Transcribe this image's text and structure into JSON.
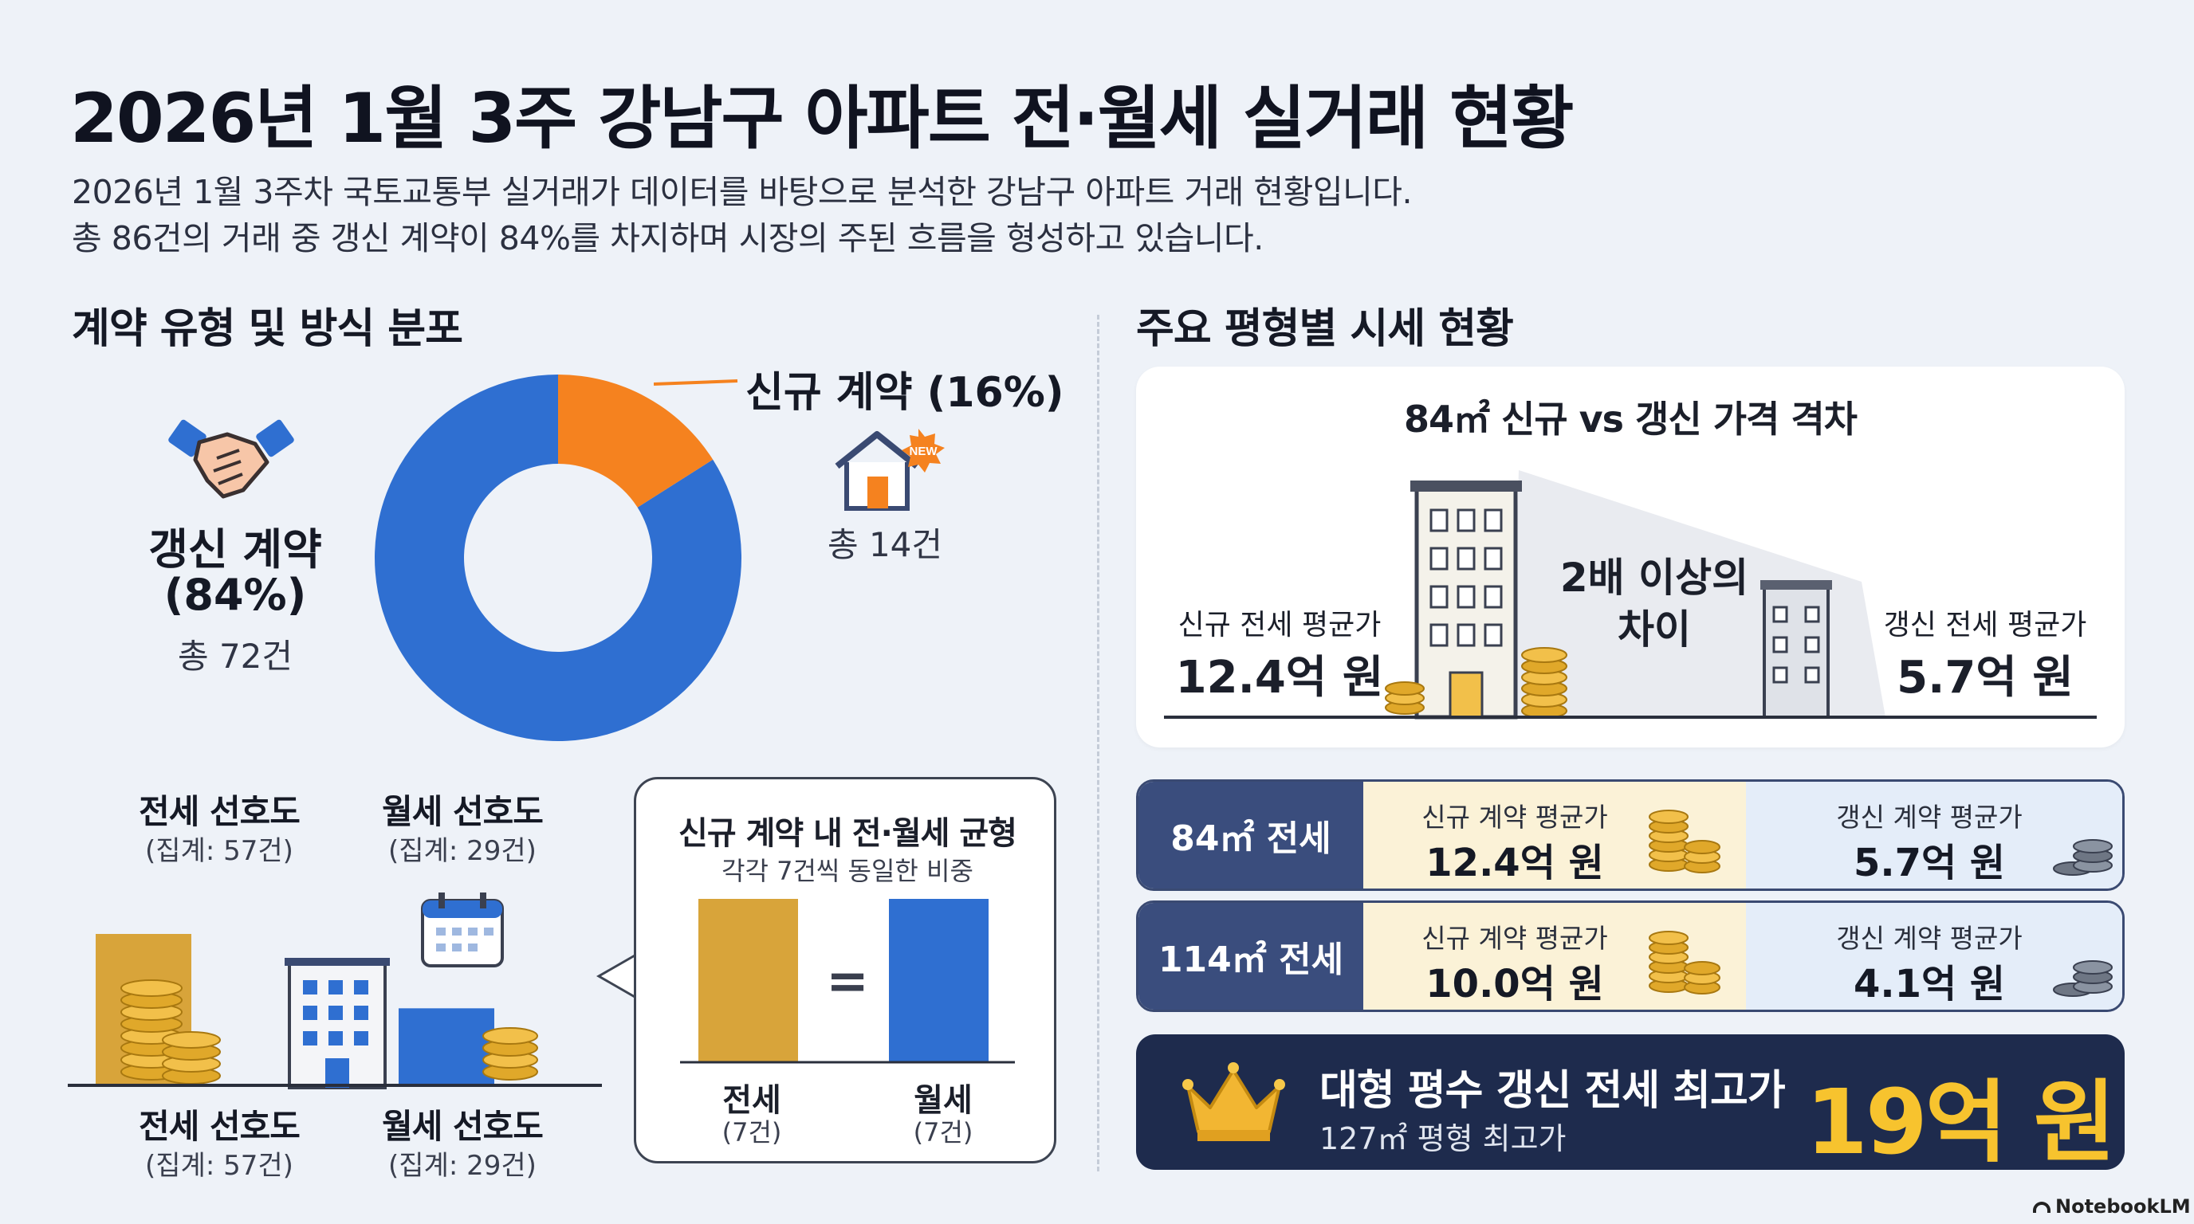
{
  "header": {
    "title": "2026년 1월 3주 강남구 아파트 전·월세 실거래 현황",
    "subtitle_1": "2026년 1월 3주차 국토교통부 실거래가 데이터를 바탕으로 분석한 강남구 아파트 거래 현황입니다.",
    "subtitle_2": "총 86건의 거래 중 갱신 계약이 84%를 차지하며 시장의 주된 흐름을 형성하고 있습니다."
  },
  "left_section": {
    "title": "계약 유형 및 방식 분포",
    "renewal_label": "갱신 계약",
    "renewal_pct": "(84%)",
    "renewal_count": "총 72건",
    "new_label": "신규 계약 (16%)",
    "new_count": "총 14건",
    "new_badge": "NEW"
  },
  "preference": {
    "jeonse_title": "전세 선호도",
    "jeonse_sub": "(집계: 57건)",
    "wolse_title": "월세 선호도",
    "wolse_sub": "(집계: 29건)"
  },
  "balance": {
    "title": "신규 계약 내 전·월세 균형",
    "subtitle": "각각 7건씩 동일한 비중",
    "equals": "=",
    "jeonse_label": "전세",
    "jeonse_count": "(7건)",
    "wolse_label": "월세",
    "wolse_count": "(7건)"
  },
  "right_section": {
    "title": "주요 평형별 시세 현황",
    "gap_title": "84㎡ 신규 vs 갱신 가격 격차",
    "gap_new_caption": "신규 전세 평균가",
    "gap_new_value": "12.4억 원",
    "gap_middle_1": "2배 이상의",
    "gap_middle_2": "차이",
    "gap_old_caption": "갱신 전세 평균가",
    "gap_old_value": "5.7억 원"
  },
  "price_rows": [
    {
      "label": "84㎡ 전세",
      "new_caption": "신규 계약 평균가",
      "new_value": "12.4억 원",
      "old_caption": "갱신 계약 평균가",
      "old_value": "5.7억 원"
    },
    {
      "label": "114㎡ 전세",
      "new_caption": "신규 계약 평균가",
      "new_value": "10.0억 원",
      "old_caption": "갱신 계약 평균가",
      "old_value": "4.1억 원"
    }
  ],
  "max_price": {
    "title": "대형 평수 갱신 전세 최고가",
    "subtitle": "127㎡ 평형 최고가",
    "value": "19억 원"
  },
  "footer": {
    "brand": "NotebookLM"
  },
  "colors": {
    "renewal": "#2f6fd1",
    "new": "#f5821f",
    "gold": "#d8a43a",
    "navy": "#1e2b4d",
    "accent_gold_text": "#f7c32e"
  },
  "chart_data": [
    {
      "type": "pie",
      "donut": true,
      "labels": [
        "갱신 계약",
        "신규 계약"
      ],
      "values": [
        84,
        16
      ],
      "counts": [
        72,
        14
      ],
      "colors": [
        "#2f6fd1",
        "#f5821f"
      ]
    },
    {
      "type": "bar",
      "categories": [
        "전세 선호도",
        "월세 선호도"
      ],
      "values": [
        57,
        29
      ],
      "colors": [
        "#d8a43a",
        "#2f6fd1"
      ]
    },
    {
      "type": "bar",
      "title": "신규 계약 내 전·월세 균형",
      "categories": [
        "전세",
        "월세"
      ],
      "values": [
        7,
        7
      ],
      "colors": [
        "#d8a43a",
        "#2f6fd1"
      ]
    }
  ]
}
